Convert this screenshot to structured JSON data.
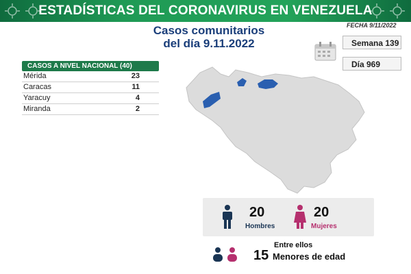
{
  "header": {
    "title": "ESTADÍSTICAS DEL CORONAVIRUS EN VENEZUELA"
  },
  "subtitle": {
    "line1": "Casos comunitarios",
    "line2": "del día 9.11.2022"
  },
  "date_label": "FECHA 9/11/2022",
  "week": "Semana 139",
  "day": "Día 969",
  "national": {
    "header": "CASOS A NIVEL NACIONAL (40)",
    "rows": [
      {
        "state": "Mérida",
        "value": "23"
      },
      {
        "state": "Caracas",
        "value": "11"
      },
      {
        "state": "Yaracuy",
        "value": "4"
      },
      {
        "state": "Miranda",
        "value": "2"
      }
    ]
  },
  "gender": {
    "men_count": "20",
    "men_label": "Hombres",
    "women_count": "20",
    "women_label": "Mujeres"
  },
  "minors": {
    "line1": "Entre ellos",
    "count": "15",
    "line2": "Menores de edad"
  },
  "colors": {
    "green": "#1e7a4a",
    "blue": "#1a3e7a",
    "women": "#b5306e",
    "men": "#1a3554",
    "highlight": "#2a5fb0"
  }
}
